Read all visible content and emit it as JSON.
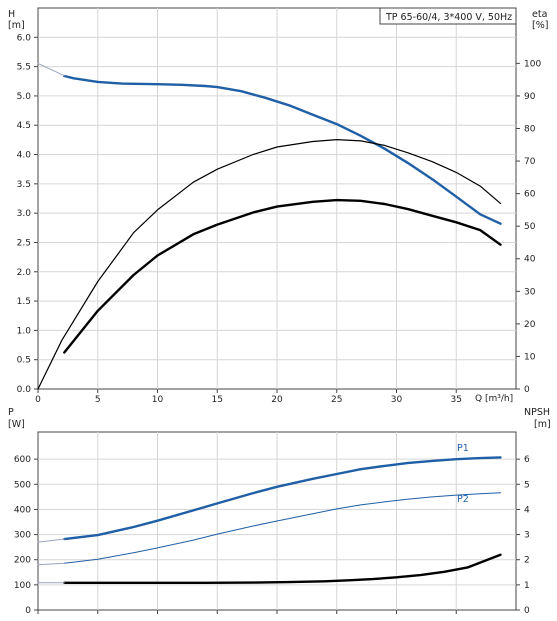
{
  "chart_data": [
    {
      "type": "line",
      "title": "TP 65-60/4, 3*400 V, 50Hz",
      "left_axis_label": "H",
      "left_axis_unit": "[m]",
      "right_axis_label": "eta",
      "right_axis_unit": "[%]",
      "x_axis_label": "Q [m³/h]",
      "xlim": [
        0,
        40
      ],
      "ylim_left": [
        0,
        6.5
      ],
      "ylim_right": [
        0,
        117
      ],
      "x_ticks": [
        0,
        5,
        10,
        15,
        20,
        25,
        30,
        35
      ],
      "y_left_ticks": [
        "0.0",
        "0.5",
        "1.0",
        "1.5",
        "2.0",
        "2.5",
        "3.0",
        "3.5",
        "4.0",
        "4.5",
        "5.0",
        "5.5",
        "6.0"
      ],
      "y_right_ticks": [
        0,
        10,
        20,
        30,
        40,
        50,
        60,
        70,
        80,
        90,
        100
      ],
      "grid": true,
      "series": [
        {
          "axis": "left",
          "color": "#1f5fa6",
          "width": 2.4,
          "points": [
            [
              2.2,
              5.34
            ],
            [
              3,
              5.3
            ],
            [
              5,
              5.24
            ],
            [
              7,
              5.21
            ],
            [
              10,
              5.2
            ],
            [
              12,
              5.19
            ],
            [
              14,
              5.17
            ],
            [
              15,
              5.15
            ],
            [
              17,
              5.08
            ],
            [
              19,
              4.97
            ],
            [
              21,
              4.84
            ],
            [
              23,
              4.68
            ],
            [
              25,
              4.52
            ],
            [
              27,
              4.32
            ],
            [
              29,
              4.1
            ],
            [
              31,
              3.85
            ],
            [
              33,
              3.58
            ],
            [
              35,
              3.28
            ],
            [
              37,
              2.98
            ],
            [
              38.7,
              2.82
            ]
          ]
        },
        {
          "axis": "right",
          "color": "#000000",
          "width": 1.2,
          "points": [
            [
              0,
              0
            ],
            [
              2,
              15
            ],
            [
              5,
              33
            ],
            [
              8,
              48
            ],
            [
              10,
              55
            ],
            [
              13,
              63.5
            ],
            [
              15,
              67.5
            ],
            [
              18,
              72
            ],
            [
              20,
              74.3
            ],
            [
              23,
              76
            ],
            [
              25,
              76.6
            ],
            [
              27,
              76.2
            ],
            [
              29,
              74.8
            ],
            [
              31,
              72.5
            ],
            [
              33,
              69.8
            ],
            [
              35,
              66.5
            ],
            [
              37,
              62.3
            ],
            [
              38.7,
              57
            ]
          ]
        },
        {
          "axis": "right",
          "color": "#000000",
          "width": 2.4,
          "points": [
            [
              2.2,
              11.2
            ],
            [
              5,
              24
            ],
            [
              8,
              35
            ],
            [
              10,
              41
            ],
            [
              13,
              47.5
            ],
            [
              15,
              50.5
            ],
            [
              18,
              54.2
            ],
            [
              20,
              56
            ],
            [
              23,
              57.5
            ],
            [
              25,
              58
            ],
            [
              27,
              57.8
            ],
            [
              29,
              56.8
            ],
            [
              31,
              55.2
            ],
            [
              33,
              53.2
            ],
            [
              35,
              51.2
            ],
            [
              37,
              48.8
            ],
            [
              38.7,
              44.3
            ]
          ]
        },
        {
          "axis": "right",
          "color": "#9aa4bf",
          "width": 1,
          "points": [
            [
              0,
              100
            ],
            [
              2.2,
              96.2
            ]
          ]
        }
      ]
    },
    {
      "type": "line",
      "left_axis_label": "P",
      "left_axis_unit": "[W]",
      "right_axis_label": "NPSH",
      "right_axis_unit": "[m]",
      "xlim": [
        0,
        40
      ],
      "ylim_left": [
        0,
        708
      ],
      "ylim_right": [
        0,
        7.08
      ],
      "x_ticks": [
        0,
        5,
        10,
        15,
        20,
        25,
        30,
        35
      ],
      "y_left_ticks": [
        0,
        100,
        200,
        300,
        400,
        500,
        600
      ],
      "y_right_ticks": [
        0,
        1,
        2,
        3,
        4,
        5,
        6
      ],
      "grid": true,
      "series": [
        {
          "name": "P1",
          "axis": "left",
          "color": "#1f5fa6",
          "width": 2.4,
          "points": [
            [
              2.2,
              282
            ],
            [
              5,
              298
            ],
            [
              8,
              330
            ],
            [
              10,
              355
            ],
            [
              13,
              396
            ],
            [
              15,
              424
            ],
            [
              18,
              465
            ],
            [
              20,
              490
            ],
            [
              23,
              522
            ],
            [
              25,
              541
            ],
            [
              27,
              560
            ],
            [
              29,
              573
            ],
            [
              31,
              585
            ],
            [
              33,
              593
            ],
            [
              35,
              600
            ],
            [
              37,
              604
            ],
            [
              38.7,
              607
            ]
          ]
        },
        {
          "name": "P2",
          "axis": "left",
          "color": "#1f5fa6",
          "width": 1,
          "points": [
            [
              2.2,
              186
            ],
            [
              5,
              202
            ],
            [
              8,
              228
            ],
            [
              10,
              247
            ],
            [
              13,
              278
            ],
            [
              15,
              302
            ],
            [
              18,
              334
            ],
            [
              20,
              354
            ],
            [
              23,
              383
            ],
            [
              25,
              402
            ],
            [
              27,
              418
            ],
            [
              29,
              430
            ],
            [
              31,
              441
            ],
            [
              33,
              450
            ],
            [
              35,
              457
            ],
            [
              37,
              462
            ],
            [
              38.7,
              466
            ]
          ]
        },
        {
          "axis": "left",
          "color": "#9aa4bf",
          "width": 1,
          "points": [
            [
              0,
              270
            ],
            [
              2.2,
              282
            ]
          ]
        },
        {
          "axis": "left",
          "color": "#9aa4bf",
          "width": 1,
          "points": [
            [
              0,
              180
            ],
            [
              2.2,
              186
            ]
          ]
        },
        {
          "axis": "right",
          "color": "#000000",
          "width": 2.4,
          "points": [
            [
              2.2,
              1.08
            ],
            [
              8,
              1.08
            ],
            [
              14,
              1.08
            ],
            [
              18,
              1.09
            ],
            [
              21,
              1.11
            ],
            [
              24,
              1.14
            ],
            [
              26,
              1.18
            ],
            [
              28,
              1.23
            ],
            [
              30,
              1.3
            ],
            [
              32,
              1.39
            ],
            [
              34,
              1.52
            ],
            [
              36,
              1.7
            ],
            [
              38.7,
              2.2
            ]
          ]
        },
        {
          "axis": "right",
          "color": "#9aa4bf",
          "width": 1,
          "points": [
            [
              0,
              1.08
            ],
            [
              2.2,
              1.08
            ]
          ]
        }
      ]
    }
  ]
}
